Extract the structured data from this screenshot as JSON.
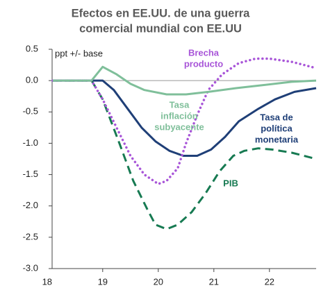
{
  "chart_data": {
    "type": "line",
    "title": [
      "Efectos en EE.UU. de una guerra",
      "comercial mundial con EE.UU"
    ],
    "annotation": "ppt +/- base",
    "xlim": [
      18.09,
      22.84
    ],
    "xticks": [
      18,
      19,
      20,
      21,
      22
    ],
    "ylim": [
      -3.0,
      0.5
    ],
    "yticks": [
      0.5,
      {
        "value": 0,
        "label": "0.0"
      },
      -0.5,
      {
        "value": -1,
        "label": "-1.0"
      },
      -1.5,
      {
        "value": -2,
        "label": "-2.0"
      },
      -2.5,
      {
        "value": -3,
        "label": "-3.0"
      }
    ],
    "series": [
      {
        "label": [
          "PIB"
        ],
        "color": "#177a52",
        "style": "dashed",
        "x": [
          18.1,
          18.8,
          19.0,
          19.3,
          19.55,
          19.8,
          19.95,
          20.15,
          20.35,
          20.6,
          20.85,
          21.1,
          21.35,
          21.55,
          21.8,
          22.05,
          22.4,
          22.84
        ],
        "values": [
          0,
          0,
          -0.3,
          -1.0,
          -1.6,
          -2.05,
          -2.3,
          -2.37,
          -2.3,
          -2.1,
          -1.8,
          -1.45,
          -1.2,
          -1.12,
          -1.08,
          -1.1,
          -1.15,
          -1.25
        ]
      },
      {
        "label": [
          "Tasa de",
          "política",
          "monetaria"
        ],
        "color": "#1f3f77",
        "style": "solid",
        "x": [
          18.1,
          19.0,
          19.2,
          19.45,
          19.7,
          19.95,
          20.2,
          20.45,
          20.7,
          20.95,
          21.2,
          21.45,
          21.8,
          22.1,
          22.45,
          22.84
        ],
        "values": [
          0,
          0,
          -0.15,
          -0.45,
          -0.75,
          -0.97,
          -1.12,
          -1.2,
          -1.2,
          -1.1,
          -0.9,
          -0.65,
          -0.45,
          -0.3,
          -0.18,
          -0.12
        ]
      },
      {
        "label": [
          "Brecha",
          "producto"
        ],
        "color": "#a855d8",
        "style": "dotted",
        "x": [
          18.1,
          18.8,
          19.0,
          19.25,
          19.5,
          19.75,
          20.0,
          20.15,
          20.35,
          20.5,
          20.7,
          20.9,
          21.15,
          21.45,
          21.75,
          22.0,
          22.4,
          22.84
        ],
        "values": [
          0,
          0,
          -0.3,
          -0.75,
          -1.2,
          -1.5,
          -1.65,
          -1.6,
          -1.4,
          -1.0,
          -0.55,
          -0.15,
          0.1,
          0.28,
          0.35,
          0.35,
          0.3,
          0.2
        ]
      },
      {
        "label": [
          "Tasa",
          "inflación",
          "subyacente"
        ],
        "color": "#7fbf9a",
        "style": "solid",
        "x": [
          18.1,
          18.8,
          19.0,
          19.25,
          19.5,
          19.75,
          20.15,
          20.5,
          20.9,
          21.4,
          21.9,
          22.4,
          22.84
        ],
        "values": [
          0,
          0,
          0.22,
          0.1,
          -0.05,
          -0.15,
          -0.22,
          -0.22,
          -0.18,
          -0.12,
          -0.07,
          -0.02,
          0
        ]
      }
    ]
  }
}
